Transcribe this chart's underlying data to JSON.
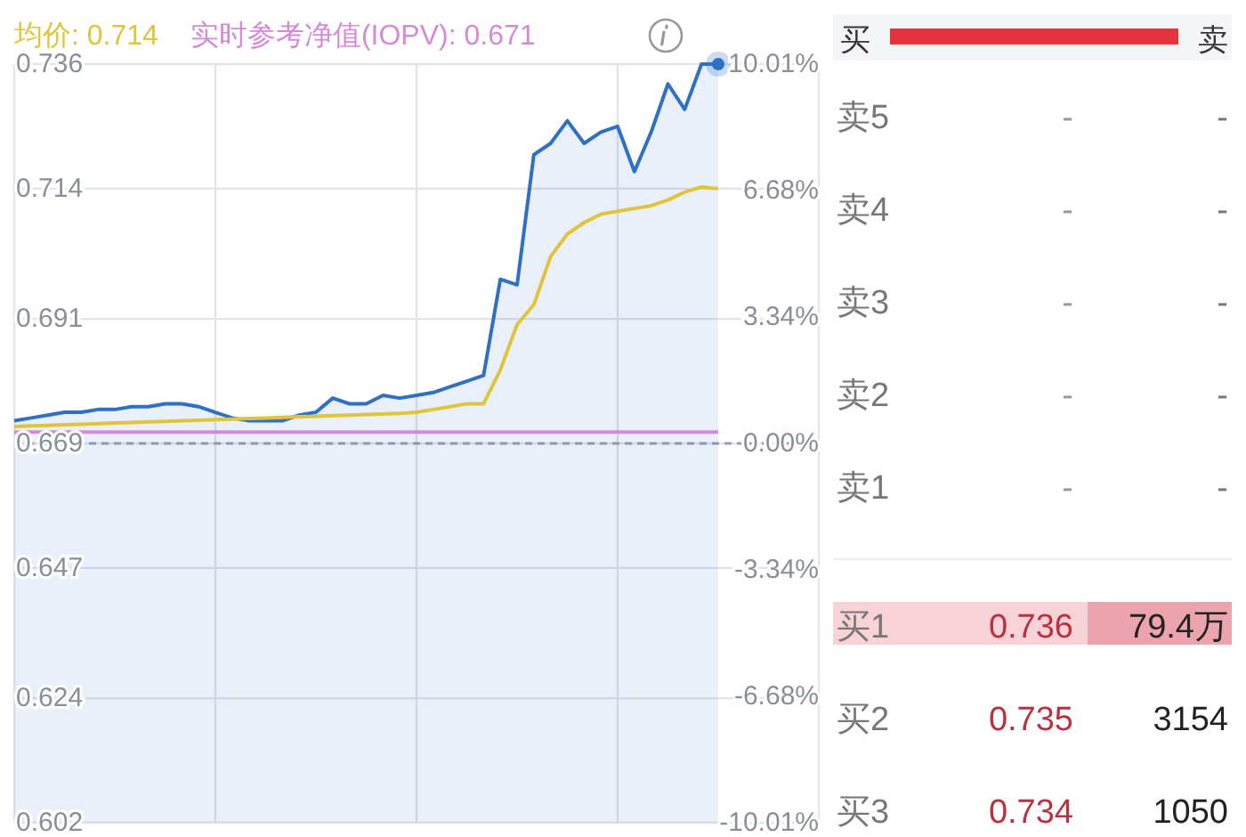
{
  "chart_data": [
    {
      "type": "line",
      "annotations": [
        "均价: 0.714",
        "实时参考净值(IOPV): 0.671"
      ],
      "categories": [
        null,
        null,
        null,
        null,
        null,
        null,
        null,
        null,
        null,
        null,
        null,
        null,
        null,
        null,
        null,
        null,
        null,
        null,
        null,
        null,
        null,
        null,
        null,
        null,
        null,
        null,
        null,
        null,
        null,
        null,
        null,
        null,
        null,
        null,
        null,
        null,
        null,
        null,
        null,
        null,
        null,
        null,
        null,
        null,
        null,
        null,
        null,
        null,
        null
      ],
      "ylim": [
        0.602,
        0.736
      ],
      "yticks": [
        0.602,
        0.624,
        0.647,
        0.669,
        0.691,
        0.714,
        0.736
      ],
      "y2lim": [
        -10.01,
        10.01
      ],
      "y2ticks": [
        {
          "value": -10.01,
          "label": "-10.01%"
        },
        {
          "value": -6.68,
          "label": "-6.68%"
        },
        {
          "value": -3.34,
          "label": "-3.34%"
        },
        {
          "value": 0,
          "label": "0.00%"
        },
        {
          "value": 3.34,
          "label": "3.34%"
        },
        {
          "value": 6.68,
          "label": "6.68%"
        },
        {
          "value": 10.01,
          "label": "10.01%"
        }
      ],
      "grid": true,
      "ref_lines": [
        {
          "axis": "y",
          "value": 0.669,
          "color": "#9aa0a8",
          "line_style": "dashed"
        }
      ],
      "series": [
        {
          "type": "area",
          "color": "#2f6fc6",
          "values": [
            0.673,
            0.6735,
            0.674,
            0.6745,
            0.6745,
            0.675,
            0.675,
            0.6755,
            0.6755,
            0.676,
            0.676,
            0.6755,
            0.6745,
            0.6735,
            0.673,
            0.673,
            0.673,
            0.674,
            0.6745,
            0.677,
            0.676,
            0.676,
            0.6775,
            0.677,
            0.6775,
            0.678,
            0.679,
            0.68,
            0.681,
            0.698,
            0.697,
            0.72,
            0.722,
            0.726,
            0.722,
            0.724,
            0.725,
            0.717,
            0.724,
            0.7325,
            0.728,
            0.736,
            0.736,
            null,
            null,
            null,
            null,
            null,
            null
          ]
        },
        {
          "type": "line",
          "color": "#e0c43a",
          "values": [
            0.672,
            0.6721,
            0.6722,
            0.6723,
            0.6724,
            0.6725,
            0.6726,
            0.6727,
            0.6728,
            0.6729,
            0.673,
            0.6731,
            0.6732,
            0.6733,
            0.6734,
            0.6735,
            0.6736,
            0.6737,
            0.6738,
            0.6739,
            0.674,
            0.6741,
            0.6742,
            0.6743,
            0.6745,
            0.675,
            0.6755,
            0.676,
            0.676,
            0.682,
            0.69,
            0.6935,
            0.702,
            0.706,
            0.708,
            0.7095,
            0.71,
            0.7105,
            0.711,
            0.712,
            0.7134,
            0.7143,
            0.714,
            null,
            null,
            null,
            null,
            null,
            null
          ]
        },
        {
          "type": "line",
          "color": "#d58ad8",
          "values": [
            0.671,
            0.671,
            0.671,
            0.671,
            0.671,
            0.671,
            0.671,
            0.671,
            0.671,
            0.671,
            0.671,
            0.671,
            0.671,
            0.671,
            0.671,
            0.671,
            0.671,
            0.671,
            0.671,
            0.671,
            0.671,
            0.671,
            0.671,
            0.671,
            0.671,
            0.671,
            0.671,
            0.671,
            0.671,
            0.671,
            0.671,
            0.671,
            0.671,
            0.671,
            0.671,
            0.671,
            0.671,
            0.671,
            0.671,
            0.671,
            0.671,
            0.671,
            0.671,
            null,
            null,
            null,
            null,
            null,
            null
          ]
        }
      ]
    },
    {
      "type": "other",
      "annotations": [
        "买",
        "卖"
      ],
      "categories": [
        "卖5",
        "卖4",
        "卖3",
        "卖2",
        "卖1",
        "买1",
        "买2",
        "买3"
      ],
      "cell_labels": [
        [
          "-",
          "-"
        ],
        [
          "-",
          "-"
        ],
        [
          "-",
          "-"
        ],
        [
          "-",
          "-"
        ],
        [
          "-",
          "-"
        ],
        [
          "0.736",
          "79.4万"
        ],
        [
          "0.735",
          "3154"
        ],
        [
          "0.734",
          "1050"
        ]
      ]
    }
  ]
}
